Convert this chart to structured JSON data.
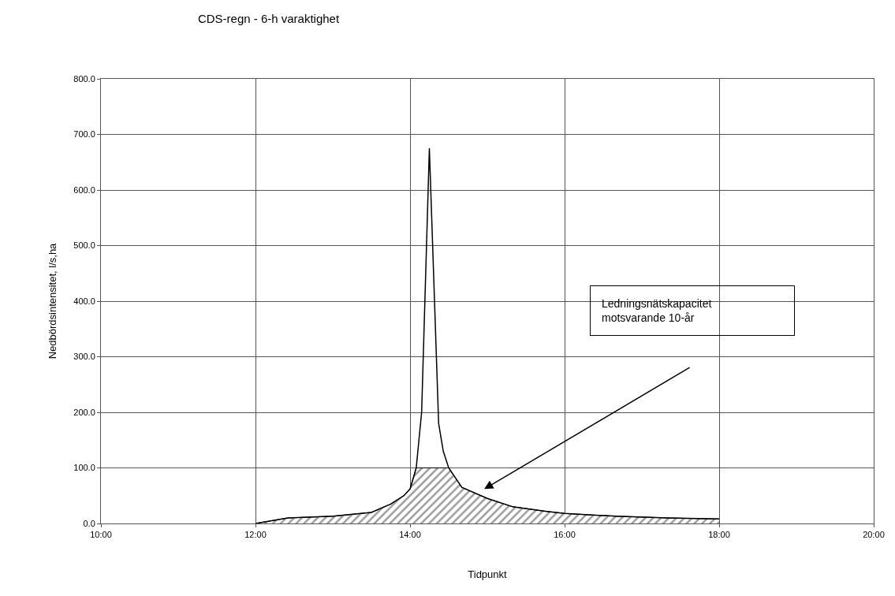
{
  "chart_data": {
    "type": "line",
    "title": "CDS-regn - 6-h varaktighet",
    "xlabel": "Tidpunkt",
    "ylabel": "Nedbördsintensitet, l/s,ha",
    "series": [
      {
        "color": "#000000",
        "x": [
          12,
          12.42,
          13,
          13.5,
          13.75,
          13.92,
          14,
          14.08,
          14.15,
          14.25,
          14.37,
          14.43,
          14.5,
          14.67,
          15,
          15.33,
          15.75,
          16,
          16.67,
          17.33,
          18
        ],
        "values": [
          0,
          10,
          13,
          20,
          35,
          50,
          62,
          100,
          200,
          675,
          180,
          130,
          100,
          65,
          45,
          30,
          22,
          18,
          13,
          10,
          8
        ]
      },
      {
        "type": "area",
        "color": "#333333",
        "x": [
          12,
          12.42,
          13,
          13.5,
          13.75,
          13.92,
          14,
          14.08,
          14.5,
          14.67,
          15,
          15.33,
          15.75,
          16,
          16.67,
          17.33,
          18
        ],
        "values": [
          0,
          10,
          13,
          20,
          35,
          50,
          62,
          100,
          100,
          65,
          45,
          30,
          22,
          18,
          13,
          10,
          8
        ]
      }
    ],
    "annotations": [
      "Ledningsnätskapacitet\nmotsvarande 10-år"
    ],
    "xlim": [
      10,
      20
    ],
    "xticks": [
      {
        "value": 10,
        "label": "10:00"
      },
      {
        "value": 12,
        "label": "12:00"
      },
      {
        "value": 14,
        "label": "14:00"
      },
      {
        "value": 16,
        "label": "16:00"
      },
      {
        "value": 18,
        "label": "18:00"
      },
      {
        "value": 20,
        "label": "20:00"
      }
    ],
    "ylim": [
      0,
      800
    ],
    "yticks": [
      {
        "value": 0,
        "label": "0.0"
      },
      {
        "value": 100,
        "label": "100.0"
      },
      {
        "value": 200,
        "label": "200.0"
      },
      {
        "value": 300,
        "label": "300.0"
      },
      {
        "value": 400,
        "label": "400.0"
      },
      {
        "value": 500,
        "label": "500.0"
      },
      {
        "value": 600,
        "label": "600.0"
      },
      {
        "value": 700,
        "label": "700.0"
      },
      {
        "value": 800,
        "label": "800.0"
      }
    ],
    "grid": true,
    "marker": "none",
    "line_style": "solid"
  }
}
